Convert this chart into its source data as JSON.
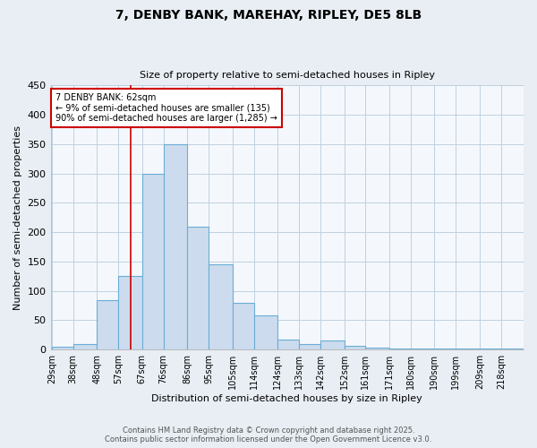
{
  "title1": "7, DENBY BANK, MAREHAY, RIPLEY, DE5 8LB",
  "title2": "Size of property relative to semi-detached houses in Ripley",
  "xlabel": "Distribution of semi-detached houses by size in Ripley",
  "ylabel": "Number of semi-detached properties",
  "bar_labels": [
    "29sqm",
    "38sqm",
    "48sqm",
    "57sqm",
    "67sqm",
    "76sqm",
    "86sqm",
    "95sqm",
    "105sqm",
    "114sqm",
    "124sqm",
    "133sqm",
    "142sqm",
    "152sqm",
    "161sqm",
    "171sqm",
    "180sqm",
    "190sqm",
    "199sqm",
    "209sqm",
    "218sqm"
  ],
  "bar_values": [
    5,
    10,
    85,
    125,
    300,
    350,
    210,
    145,
    80,
    58,
    17,
    10,
    15,
    7,
    3,
    2,
    2,
    2,
    2,
    2,
    2
  ],
  "bar_edges": [
    29,
    38,
    48,
    57,
    67,
    76,
    86,
    95,
    105,
    114,
    124,
    133,
    142,
    152,
    161,
    171,
    180,
    190,
    199,
    209,
    218,
    227
  ],
  "bar_color": "#ccdcee",
  "bar_edge_color": "#6aadd5",
  "property_size": 62,
  "vline_color": "#cc0000",
  "annotation_title": "7 DENBY BANK: 62sqm",
  "annotation_line2": "← 9% of semi-detached houses are smaller (135)",
  "annotation_line3": "90% of semi-detached houses are larger (1,285) →",
  "annotation_box_color": "#cc0000",
  "ylim": [
    0,
    450
  ],
  "yticks": [
    0,
    50,
    100,
    150,
    200,
    250,
    300,
    350,
    400,
    450
  ],
  "footer1": "Contains HM Land Registry data © Crown copyright and database right 2025.",
  "footer2": "Contains public sector information licensed under the Open Government Licence v3.0.",
  "bg_color": "#e8eef4",
  "plot_bg_color": "#f4f8fc",
  "grid_color": "#c0d0e0"
}
